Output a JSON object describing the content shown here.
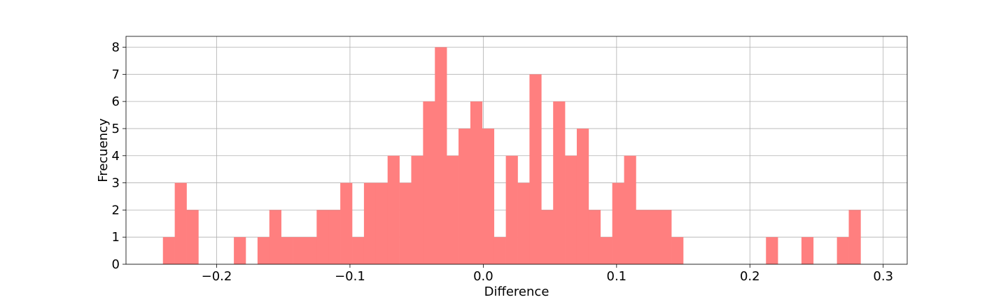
{
  "chart_data": {
    "type": "bar",
    "subtype": "histogram",
    "title": "",
    "xlabel": "Difference",
    "ylabel": "Frecuency",
    "grid": true,
    "xlim": [
      -0.268,
      0.318
    ],
    "ylim": [
      0,
      8.4
    ],
    "xticks": [
      -0.2,
      -0.1,
      0.0,
      0.1,
      0.2,
      0.3
    ],
    "xtick_labels": [
      "−0.2",
      "−0.1",
      "0.0",
      "0.1",
      "0.2",
      "0.3"
    ],
    "yticks": [
      0,
      1,
      2,
      3,
      4,
      5,
      6,
      7,
      8
    ],
    "ytick_labels": [
      "0",
      "1",
      "2",
      "3",
      "4",
      "5",
      "6",
      "7",
      "8"
    ],
    "bar_color": "#ff7f7f",
    "bins": {
      "start": -0.2403,
      "width": 0.00887,
      "counts": [
        1,
        3,
        2,
        0,
        0,
        0,
        1,
        0,
        1,
        2,
        1,
        1,
        1,
        2,
        2,
        3,
        1,
        3,
        3,
        4,
        3,
        4,
        6,
        8,
        4,
        5,
        6,
        5,
        1,
        4,
        3,
        7,
        2,
        6,
        4,
        5,
        2,
        1,
        3,
        4,
        2,
        2,
        2,
        1,
        0,
        0,
        0,
        0,
        0,
        0,
        0,
        1,
        0,
        0,
        1,
        0,
        0,
        1,
        2,
        0
      ]
    }
  }
}
